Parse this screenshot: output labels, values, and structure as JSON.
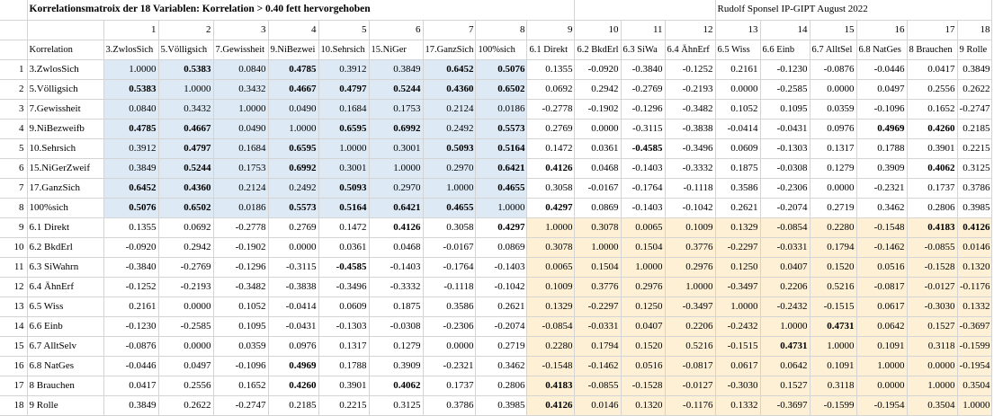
{
  "title": "Korrelationsmatroix der 18 Variablen: Korrelation > 0.40 fett hervorgehoben",
  "author": "Rudolf Sponsel IP-GIPT August 2022",
  "corner_label": "Korrelation",
  "column_numbers": [
    "1",
    "2",
    "3",
    "4",
    "5",
    "6",
    "7",
    "8",
    "9",
    "10",
    "11",
    "12",
    "13",
    "14",
    "15",
    "16",
    "17",
    "18"
  ],
  "column_headers": [
    "3.ZwlosSich",
    "5.Völligsich",
    "7.Gewissheit",
    "9.NiBezwei",
    "10.Sehrsich",
    "15.NiGer",
    "17.GanzSich",
    "100%sich",
    "6.1 Direkt",
    "6.2 BkdErl",
    "6.3 SiWa",
    "6.4 ÄhnErf",
    "6.5 Wiss",
    "6.6 Einb",
    "6.7 AlltSel",
    "6.8 NatGes",
    "8 Brauchen",
    "9 Rolle"
  ],
  "row_labels": [
    "3.ZwlosSich",
    "5.Völligsich",
    "7.Gewissheit",
    "9.NiBezweifb",
    "10.Sehrsich",
    "15.NiGerZweif",
    "17.GanzSich",
    "100%sich",
    "6.1 Direkt",
    "6.2 BkdErl",
    "6.3 SiWahrn",
    "6.4 ÄhnErf",
    "6.5 Wiss",
    "6.6 Einb",
    "6.7 AlltSelv",
    "6.8 NatGes",
    "8 Brauchen",
    "9 Rolle"
  ],
  "row_numbers": [
    "1",
    "2",
    "3",
    "4",
    "5",
    "6",
    "7",
    "8",
    "9",
    "10",
    "11",
    "12",
    "13",
    "14",
    "15",
    "16",
    "17",
    "18"
  ],
  "matrix": [
    [
      "1.0000",
      "0.5383",
      "0.0840",
      "0.4785",
      "0.3912",
      "0.3849",
      "0.6452",
      "0.5076",
      "0.1355",
      "-0.0920",
      "-0.3840",
      "-0.1252",
      "0.2161",
      "-0.1230",
      "-0.0876",
      "-0.0446",
      "0.0417",
      "0.3849"
    ],
    [
      "0.5383",
      "1.0000",
      "0.3432",
      "0.4667",
      "0.4797",
      "0.5244",
      "0.4360",
      "0.6502",
      "0.0692",
      "0.2942",
      "-0.2769",
      "-0.2193",
      "0.0000",
      "-0.2585",
      "0.0000",
      "0.0497",
      "0.2556",
      "0.2622"
    ],
    [
      "0.0840",
      "0.3432",
      "1.0000",
      "0.0490",
      "0.1684",
      "0.1753",
      "0.2124",
      "0.0186",
      "-0.2778",
      "-0.1902",
      "-0.1296",
      "-0.3482",
      "0.1052",
      "0.1095",
      "0.0359",
      "-0.1096",
      "0.1652",
      "-0.2747"
    ],
    [
      "0.4785",
      "0.4667",
      "0.0490",
      "1.0000",
      "0.6595",
      "0.6992",
      "0.2492",
      "0.5573",
      "0.2769",
      "0.0000",
      "-0.3115",
      "-0.3838",
      "-0.0414",
      "-0.0431",
      "0.0976",
      "0.4969",
      "0.4260",
      "0.2185"
    ],
    [
      "0.3912",
      "0.4797",
      "0.1684",
      "0.6595",
      "1.0000",
      "0.3001",
      "0.5093",
      "0.5164",
      "0.1472",
      "0.0361",
      "-0.4585",
      "-0.3496",
      "0.0609",
      "-0.1303",
      "0.1317",
      "0.1788",
      "0.3901",
      "0.2215"
    ],
    [
      "0.3849",
      "0.5244",
      "0.1753",
      "0.6992",
      "0.3001",
      "1.0000",
      "0.2970",
      "0.6421",
      "0.4126",
      "0.0468",
      "-0.1403",
      "-0.3332",
      "0.1875",
      "-0.0308",
      "0.1279",
      "0.3909",
      "0.4062",
      "0.3125"
    ],
    [
      "0.6452",
      "0.4360",
      "0.2124",
      "0.2492",
      "0.5093",
      "0.2970",
      "1.0000",
      "0.4655",
      "0.3058",
      "-0.0167",
      "-0.1764",
      "-0.1118",
      "0.3586",
      "-0.2306",
      "0.0000",
      "-0.2321",
      "0.1737",
      "0.3786"
    ],
    [
      "0.5076",
      "0.6502",
      "0.0186",
      "0.5573",
      "0.5164",
      "0.6421",
      "0.4655",
      "1.0000",
      "0.4297",
      "0.0869",
      "-0.1403",
      "-0.1042",
      "0.2621",
      "-0.2074",
      "0.2719",
      "0.3462",
      "0.2806",
      "0.3985"
    ],
    [
      "0.1355",
      "0.0692",
      "-0.2778",
      "0.2769",
      "0.1472",
      "0.4126",
      "0.3058",
      "0.4297",
      "1.0000",
      "0.3078",
      "0.0065",
      "0.1009",
      "0.1329",
      "-0.0854",
      "0.2280",
      "-0.1548",
      "0.4183",
      "0.4126"
    ],
    [
      "-0.0920",
      "0.2942",
      "-0.1902",
      "0.0000",
      "0.0361",
      "0.0468",
      "-0.0167",
      "0.0869",
      "0.3078",
      "1.0000",
      "0.1504",
      "0.3776",
      "-0.2297",
      "-0.0331",
      "0.1794",
      "-0.1462",
      "-0.0855",
      "0.0146"
    ],
    [
      "-0.3840",
      "-0.2769",
      "-0.1296",
      "-0.3115",
      "-0.4585",
      "-0.1403",
      "-0.1764",
      "-0.1403",
      "0.0065",
      "0.1504",
      "1.0000",
      "0.2976",
      "0.1250",
      "0.0407",
      "0.1520",
      "0.0516",
      "-0.1528",
      "0.1320"
    ],
    [
      "-0.1252",
      "-0.2193",
      "-0.3482",
      "-0.3838",
      "-0.3496",
      "-0.3332",
      "-0.1118",
      "-0.1042",
      "0.1009",
      "0.3776",
      "0.2976",
      "1.0000",
      "-0.3497",
      "0.2206",
      "0.5216",
      "-0.0817",
      "-0.0127",
      "-0.1176"
    ],
    [
      "0.2161",
      "0.0000",
      "0.1052",
      "-0.0414",
      "0.0609",
      "0.1875",
      "0.3586",
      "0.2621",
      "0.1329",
      "-0.2297",
      "0.1250",
      "-0.3497",
      "1.0000",
      "-0.2432",
      "-0.1515",
      "0.0617",
      "-0.3030",
      "0.1332"
    ],
    [
      "-0.1230",
      "-0.2585",
      "0.1095",
      "-0.0431",
      "-0.1303",
      "-0.0308",
      "-0.2306",
      "-0.2074",
      "-0.0854",
      "-0.0331",
      "0.0407",
      "0.2206",
      "-0.2432",
      "1.0000",
      "0.4731",
      "0.0642",
      "0.1527",
      "-0.3697"
    ],
    [
      "-0.0876",
      "0.0000",
      "0.0359",
      "0.0976",
      "0.1317",
      "0.1279",
      "0.0000",
      "0.2719",
      "0.2280",
      "0.1794",
      "0.1520",
      "0.5216",
      "-0.1515",
      "0.4731",
      "1.0000",
      "0.1091",
      "0.3118",
      "-0.1599"
    ],
    [
      "-0.0446",
      "0.0497",
      "-0.1096",
      "0.4969",
      "0.1788",
      "0.3909",
      "-0.2321",
      "0.3462",
      "-0.1548",
      "-0.1462",
      "0.0516",
      "-0.0817",
      "0.0617",
      "0.0642",
      "0.1091",
      "1.0000",
      "0.0000",
      "-0.1954"
    ],
    [
      "0.0417",
      "0.2556",
      "0.1652",
      "0.4260",
      "0.3901",
      "0.4062",
      "0.1737",
      "0.2806",
      "0.4183",
      "-0.0855",
      "-0.1528",
      "-0.0127",
      "-0.3030",
      "0.1527",
      "0.3118",
      "0.0000",
      "1.0000",
      "0.3504"
    ],
    [
      "0.3849",
      "0.2622",
      "-0.2747",
      "0.2185",
      "0.2215",
      "0.3125",
      "0.3786",
      "0.3985",
      "0.4126",
      "0.0146",
      "0.1320",
      "-0.1176",
      "0.1332",
      "-0.3697",
      "-0.1599",
      "-0.1954",
      "0.3504",
      "1.0000"
    ]
  ],
  "bold_cells": [
    [
      0,
      1
    ],
    [
      0,
      3
    ],
    [
      0,
      6
    ],
    [
      0,
      7
    ],
    [
      1,
      3
    ],
    [
      1,
      4
    ],
    [
      1,
      5
    ],
    [
      1,
      6
    ],
    [
      1,
      7
    ],
    [
      3,
      4
    ],
    [
      3,
      5
    ],
    [
      3,
      7
    ],
    [
      3,
      15
    ],
    [
      3,
      16
    ],
    [
      4,
      6
    ],
    [
      4,
      7
    ],
    [
      4,
      10
    ],
    [
      5,
      8
    ],
    [
      5,
      7
    ],
    [
      5,
      16
    ],
    [
      6,
      7
    ],
    [
      7,
      8
    ],
    [
      8,
      16
    ],
    [
      8,
      17
    ],
    [
      13,
      14
    ]
  ],
  "colors": {
    "block_a": "#ddeaf6",
    "block_b": "#fdf0d4",
    "grid": "#d4d4d4"
  }
}
